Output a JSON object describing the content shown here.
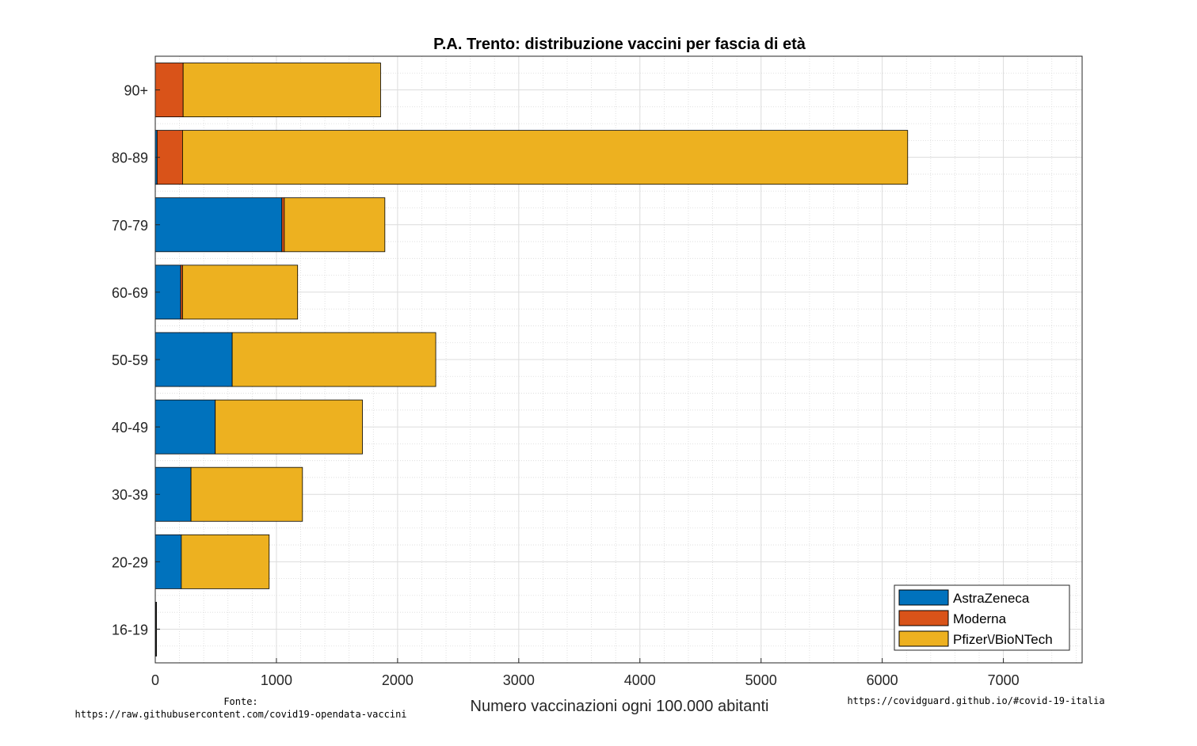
{
  "chart_data": {
    "type": "bar",
    "orientation": "horizontal",
    "stacked": true,
    "title": "P.A. Trento: distribuzione vaccini per fascia di età",
    "xlabel": "Numero vaccinazioni ogni 100.000 abitanti",
    "ylabel": "",
    "xlim": [
      0,
      7650
    ],
    "xticks": [
      0,
      1000,
      2000,
      3000,
      4000,
      5000,
      6000,
      7000
    ],
    "grid": true,
    "minor_grid": true,
    "legend_position": "bottom-right",
    "categories": [
      "16-19",
      "20-29",
      "30-39",
      "40-49",
      "50-59",
      "60-69",
      "70-79",
      "80-89",
      "90+"
    ],
    "series": [
      {
        "name": "AstraZeneca",
        "color": "#0072BD",
        "values": [
          0,
          215,
          295,
          495,
          635,
          210,
          1045,
          15,
          0
        ]
      },
      {
        "name": "Moderna",
        "color": "#D95319",
        "values": [
          5,
          0,
          0,
          0,
          0,
          15,
          20,
          210,
          230
        ]
      },
      {
        "name": "Pfizer\\/BioNTech",
        "color": "#EDB120",
        "values": [
          5,
          725,
          920,
          1215,
          1680,
          950,
          830,
          5985,
          1630
        ]
      }
    ]
  },
  "source": {
    "label": "Fonte:",
    "url": "https://raw.githubusercontent.com/covid19-opendata-vaccini"
  },
  "credit": "https://covidguard.github.io/#covid-19-italia"
}
